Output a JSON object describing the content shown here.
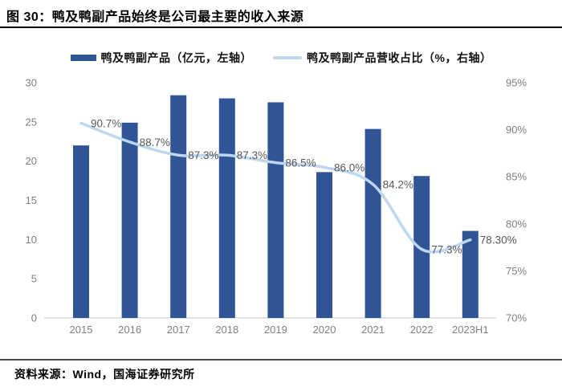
{
  "figure": {
    "title": "图 30：鸭及鸭副产品始终是公司最主要的收入来源",
    "source": "资料来源：Wind，国海证券研究所"
  },
  "legend": [
    {
      "label": "鸭及鸭副产品（亿元，左轴）",
      "type": "bar",
      "color": "#2F5597"
    },
    {
      "label": "鸭及鸭副产品营收占比（%，右轴）",
      "type": "line",
      "color": "#BDD7EE"
    }
  ],
  "colors": {
    "bar": "#2F5597",
    "line": "#BDD7EE",
    "axis_text": "#7f7f7f",
    "data_label_text": "#595959",
    "baseline": "#D9D9D9",
    "title_text": "#000000"
  },
  "chart_data": {
    "type": "bar",
    "subtype": "bar+line combo, dual axis",
    "title": "图 30：鸭及鸭副产品始终是公司最主要的收入来源",
    "categories": [
      "2015",
      "2016",
      "2017",
      "2018",
      "2019",
      "2020",
      "2021",
      "2022",
      "2023H1"
    ],
    "series": [
      {
        "name": "鸭及鸭副产品（亿元，左轴）",
        "type": "bar",
        "axis": "left",
        "color": "#2F5597",
        "values": [
          22.0,
          24.9,
          28.4,
          28.0,
          27.5,
          18.6,
          24.1,
          18.1,
          11.1
        ]
      },
      {
        "name": "鸭及鸭副产品营收占比（%，右轴）",
        "type": "line",
        "axis": "right",
        "color": "#BDD7EE",
        "values": [
          90.7,
          88.7,
          87.3,
          87.3,
          86.5,
          86.0,
          84.2,
          77.3,
          78.3
        ],
        "point_labels": [
          "90.7%",
          "88.7%",
          "87.3%",
          "87.3%",
          "86.5%",
          "86.0%",
          "84.2%",
          "77.3%",
          "78.30%"
        ]
      }
    ],
    "left_axis": {
      "ticks": [
        0,
        5,
        10,
        15,
        20,
        25,
        30
      ],
      "range": [
        0,
        30
      ],
      "tick_labels": [
        "0",
        "5",
        "10",
        "15",
        "20",
        "25",
        "30"
      ]
    },
    "right_axis": {
      "ticks": [
        70,
        75,
        80,
        85,
        90,
        95
      ],
      "range": [
        70,
        95
      ],
      "tick_labels": [
        "70%",
        "75%",
        "80%",
        "85%",
        "90%",
        "95%"
      ]
    },
    "grid": false,
    "legend_position": "top"
  }
}
